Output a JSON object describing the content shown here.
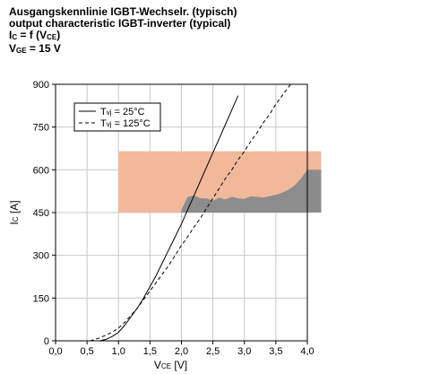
{
  "header": {
    "title_de": "Ausgangskennlinie IGBT-Wechselr. (typisch)",
    "title_en": "output characteristic IGBT-inverter (typical)",
    "formula_ic": "I",
    "formula_ic_sub": "C",
    "formula_eq": " = f (V",
    "formula_vce_sub": "CE",
    "formula_close": ")",
    "vge_v": "V",
    "vge_sub": "GE",
    "vge_value": " = 15 V"
  },
  "chart_data": {
    "type": "line",
    "xlabel": {
      "main": "V",
      "sub": "CE",
      "unit": " [V]"
    },
    "ylabel": {
      "main": "I",
      "sub": "C",
      "unit": " [A]"
    },
    "xlim": [
      0,
      4.0
    ],
    "ylim": [
      0,
      900
    ],
    "x_ticks": [
      "0,0",
      "0,5",
      "1,0",
      "1,5",
      "2,0",
      "2,5",
      "3,0",
      "3,5",
      "4,0"
    ],
    "y_ticks": [
      "0",
      "150",
      "300",
      "450",
      "600",
      "750",
      "900"
    ],
    "grid": true,
    "legend_position": "top-left",
    "series": [
      {
        "name": "T",
        "name_sub": "vj",
        "name_rest": " = 25°C",
        "style": "solid",
        "color": "#000000",
        "x": [
          0.7,
          0.8,
          0.9,
          1.0,
          1.1,
          1.2,
          1.3,
          1.4,
          1.5,
          1.6,
          1.7,
          1.8,
          1.9,
          2.0,
          2.1,
          2.2,
          2.3,
          2.4,
          2.5,
          2.6,
          2.7,
          2.8,
          2.9
        ],
        "y": [
          0,
          5,
          15,
          30,
          55,
          85,
          115,
          150,
          190,
          230,
          275,
          320,
          365,
          410,
          460,
          510,
          560,
          610,
          660,
          710,
          760,
          810,
          860
        ]
      },
      {
        "name": "T",
        "name_sub": "vj",
        "name_rest": " = 125°C",
        "style": "dashed",
        "color": "#000000",
        "x": [
          0.55,
          0.7,
          0.9,
          1.0,
          1.1,
          1.2,
          1.3,
          1.4,
          1.5,
          1.6,
          1.7,
          1.8,
          1.9,
          2.0,
          2.1,
          2.2,
          2.3,
          2.4,
          2.5,
          2.6,
          2.7,
          2.8,
          2.9,
          3.0,
          3.1,
          3.2,
          3.3,
          3.4,
          3.5,
          3.6,
          3.7,
          3.8,
          3.9
        ],
        "y": [
          0,
          10,
          30,
          45,
          65,
          90,
          115,
          145,
          175,
          205,
          235,
          265,
          300,
          335,
          365,
          400,
          430,
          465,
          500,
          535,
          570,
          600,
          635,
          665,
          700,
          730,
          765,
          795,
          830,
          860,
          890,
          920,
          950
        ]
      }
    ],
    "overlay": {
      "band_color": "#f2b89a",
      "band_x": [
        1.0,
        4.22
      ],
      "band_y": [
        450,
        665
      ],
      "area_color": "#8c8c8c",
      "area_x": [
        2.0,
        2.1,
        2.2,
        2.3,
        2.4,
        2.5,
        2.6,
        2.7,
        2.8,
        2.9,
        3.0,
        3.1,
        3.2,
        3.3,
        3.4,
        3.5,
        3.6,
        3.7,
        3.8,
        3.9,
        4.0,
        4.1,
        4.22
      ],
      "area_y": [
        460,
        505,
        510,
        500,
        500,
        492,
        502,
        496,
        505,
        500,
        498,
        507,
        505,
        503,
        508,
        512,
        520,
        530,
        545,
        570,
        600,
        600,
        600
      ]
    }
  }
}
